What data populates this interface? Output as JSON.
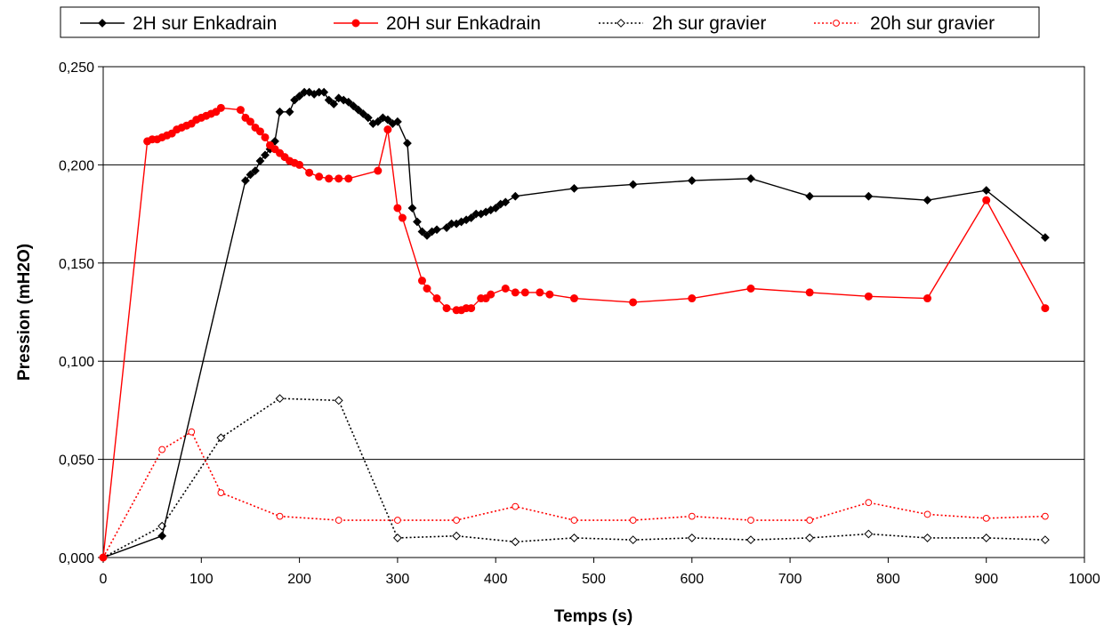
{
  "chart_data": {
    "type": "line",
    "title": "",
    "xlabel": "Temps (s)",
    "ylabel": "Pression (mH2O)",
    "xlim": [
      0,
      1000
    ],
    "ylim": [
      0,
      0.25
    ],
    "x_ticks": [
      "0",
      "100",
      "200",
      "300",
      "400",
      "500",
      "600",
      "700",
      "800",
      "900",
      "1000"
    ],
    "y_ticks": [
      "0,000",
      "0,050",
      "0,100",
      "0,150",
      "0,200",
      "0,250"
    ],
    "grid": "horizontal",
    "legend_position": "top",
    "series": [
      {
        "name": "2H sur Enkadrain",
        "color": "#000000",
        "line": "solid",
        "marker": "filled-diamond",
        "points": [
          [
            0,
            0.0
          ],
          [
            60,
            0.011
          ],
          [
            145,
            0.192
          ],
          [
            150,
            0.195
          ],
          [
            155,
            0.197
          ],
          [
            160,
            0.202
          ],
          [
            165,
            0.205
          ],
          [
            170,
            0.208
          ],
          [
            175,
            0.212
          ],
          [
            180,
            0.227
          ],
          [
            190,
            0.227
          ],
          [
            195,
            0.233
          ],
          [
            200,
            0.235
          ],
          [
            205,
            0.237
          ],
          [
            210,
            0.237
          ],
          [
            215,
            0.236
          ],
          [
            220,
            0.237
          ],
          [
            225,
            0.237
          ],
          [
            230,
            0.233
          ],
          [
            235,
            0.231
          ],
          [
            240,
            0.234
          ],
          [
            245,
            0.233
          ],
          [
            250,
            0.232
          ],
          [
            255,
            0.23
          ],
          [
            260,
            0.228
          ],
          [
            265,
            0.226
          ],
          [
            270,
            0.224
          ],
          [
            275,
            0.221
          ],
          [
            280,
            0.222
          ],
          [
            285,
            0.224
          ],
          [
            290,
            0.223
          ],
          [
            295,
            0.221
          ],
          [
            300,
            0.222
          ],
          [
            310,
            0.211
          ],
          [
            315,
            0.178
          ],
          [
            320,
            0.171
          ],
          [
            325,
            0.166
          ],
          [
            330,
            0.164
          ],
          [
            335,
            0.166
          ],
          [
            340,
            0.167
          ],
          [
            350,
            0.168
          ],
          [
            355,
            0.17
          ],
          [
            360,
            0.17
          ],
          [
            365,
            0.171
          ],
          [
            370,
            0.172
          ],
          [
            375,
            0.173
          ],
          [
            380,
            0.175
          ],
          [
            385,
            0.175
          ],
          [
            390,
            0.176
          ],
          [
            395,
            0.177
          ],
          [
            400,
            0.178
          ],
          [
            405,
            0.18
          ],
          [
            410,
            0.181
          ],
          [
            420,
            0.184
          ],
          [
            480,
            0.188
          ],
          [
            540,
            0.19
          ],
          [
            600,
            0.192
          ],
          [
            660,
            0.193
          ],
          [
            720,
            0.184
          ],
          [
            780,
            0.184
          ],
          [
            840,
            0.182
          ],
          [
            900,
            0.187
          ],
          [
            960,
            0.163
          ]
        ]
      },
      {
        "name": "20H sur Enkadrain",
        "color": "#ff0000",
        "line": "solid",
        "marker": "filled-circle",
        "points": [
          [
            0,
            0.0
          ],
          [
            45,
            0.212
          ],
          [
            50,
            0.213
          ],
          [
            55,
            0.213
          ],
          [
            60,
            0.214
          ],
          [
            65,
            0.215
          ],
          [
            70,
            0.216
          ],
          [
            75,
            0.218
          ],
          [
            80,
            0.219
          ],
          [
            85,
            0.22
          ],
          [
            90,
            0.221
          ],
          [
            95,
            0.223
          ],
          [
            100,
            0.224
          ],
          [
            105,
            0.225
          ],
          [
            110,
            0.226
          ],
          [
            115,
            0.227
          ],
          [
            120,
            0.229
          ],
          [
            140,
            0.228
          ],
          [
            145,
            0.224
          ],
          [
            150,
            0.222
          ],
          [
            155,
            0.219
          ],
          [
            160,
            0.217
          ],
          [
            165,
            0.214
          ],
          [
            170,
            0.21
          ],
          [
            175,
            0.208
          ],
          [
            180,
            0.206
          ],
          [
            185,
            0.204
          ],
          [
            190,
            0.202
          ],
          [
            195,
            0.201
          ],
          [
            200,
            0.2
          ],
          [
            210,
            0.196
          ],
          [
            220,
            0.194
          ],
          [
            230,
            0.193
          ],
          [
            240,
            0.193
          ],
          [
            250,
            0.193
          ],
          [
            280,
            0.197
          ],
          [
            290,
            0.218
          ],
          [
            300,
            0.178
          ],
          [
            305,
            0.173
          ],
          [
            325,
            0.141
          ],
          [
            330,
            0.137
          ],
          [
            340,
            0.132
          ],
          [
            350,
            0.127
          ],
          [
            360,
            0.126
          ],
          [
            365,
            0.126
          ],
          [
            370,
            0.127
          ],
          [
            375,
            0.127
          ],
          [
            385,
            0.132
          ],
          [
            390,
            0.132
          ],
          [
            395,
            0.134
          ],
          [
            410,
            0.137
          ],
          [
            420,
            0.135
          ],
          [
            430,
            0.135
          ],
          [
            445,
            0.135
          ],
          [
            455,
            0.134
          ],
          [
            480,
            0.132
          ],
          [
            540,
            0.13
          ],
          [
            600,
            0.132
          ],
          [
            660,
            0.137
          ],
          [
            720,
            0.135
          ],
          [
            780,
            0.133
          ],
          [
            840,
            0.132
          ],
          [
            900,
            0.182
          ],
          [
            960,
            0.127
          ]
        ]
      },
      {
        "name": "2h sur gravier",
        "color": "#000000",
        "line": "dotted",
        "marker": "open-diamond",
        "points": [
          [
            0,
            0.0
          ],
          [
            60,
            0.016
          ],
          [
            120,
            0.061
          ],
          [
            180,
            0.081
          ],
          [
            240,
            0.08
          ],
          [
            300,
            0.01
          ],
          [
            360,
            0.011
          ],
          [
            420,
            0.008
          ],
          [
            480,
            0.01
          ],
          [
            540,
            0.009
          ],
          [
            600,
            0.01
          ],
          [
            660,
            0.009
          ],
          [
            720,
            0.01
          ],
          [
            780,
            0.012
          ],
          [
            840,
            0.01
          ],
          [
            900,
            0.01
          ],
          [
            960,
            0.009
          ]
        ]
      },
      {
        "name": "20h sur gravier",
        "color": "#ff0000",
        "line": "dotted",
        "marker": "open-circle",
        "points": [
          [
            0,
            0.0
          ],
          [
            60,
            0.055
          ],
          [
            90,
            0.064
          ],
          [
            120,
            0.033
          ],
          [
            180,
            0.021
          ],
          [
            240,
            0.019
          ],
          [
            300,
            0.019
          ],
          [
            360,
            0.019
          ],
          [
            420,
            0.026
          ],
          [
            480,
            0.019
          ],
          [
            540,
            0.019
          ],
          [
            600,
            0.021
          ],
          [
            660,
            0.019
          ],
          [
            720,
            0.019
          ],
          [
            780,
            0.028
          ],
          [
            840,
            0.022
          ],
          [
            900,
            0.02
          ],
          [
            960,
            0.021
          ]
        ]
      }
    ]
  }
}
